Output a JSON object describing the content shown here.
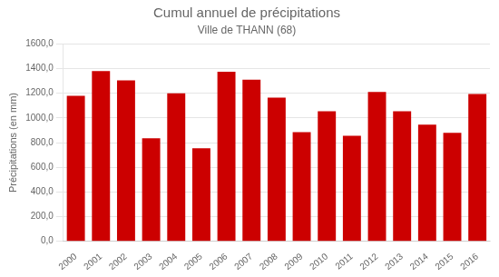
{
  "chart_data": {
    "type": "bar",
    "title": "Cumul annuel de précipitations",
    "subtitle": "Ville de THANN (68)",
    "ylabel": "Précipitations (en mm)",
    "categories": [
      "2000",
      "2001",
      "2002",
      "2003",
      "2004",
      "2005",
      "2006",
      "2007",
      "2008",
      "2009",
      "2010",
      "2011",
      "2012",
      "2013",
      "2014",
      "2015",
      "2016"
    ],
    "values": [
      1180,
      1380,
      1305,
      835,
      1200,
      755,
      1375,
      1310,
      1165,
      885,
      1055,
      855,
      1210,
      1055,
      945,
      880,
      1195
    ],
    "color": "#cc0000",
    "ylim": [
      0,
      1600
    ],
    "yticks": [
      {
        "value": 0,
        "label": "0,0"
      },
      {
        "value": 200,
        "label": "200,0"
      },
      {
        "value": 400,
        "label": "400,0"
      },
      {
        "value": 600,
        "label": "600,0"
      },
      {
        "value": 800,
        "label": "800,0"
      },
      {
        "value": 1000,
        "label": "1000,0"
      },
      {
        "value": 1200,
        "label": "1200,0"
      },
      {
        "value": 1400,
        "label": "1400,0"
      },
      {
        "value": 1600,
        "label": "1600,0"
      }
    ],
    "grid": true
  }
}
